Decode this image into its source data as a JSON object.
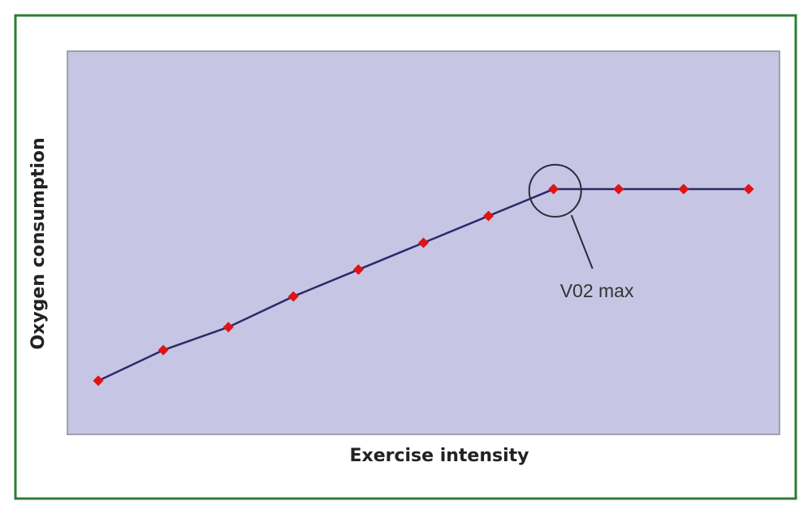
{
  "chart_data": {
    "type": "line",
    "x_label": "Exercise intensity",
    "y_label": "Oxygen consumption",
    "annotation": "V02 max",
    "categories": [
      null,
      null,
      null,
      null,
      null,
      null,
      null,
      null,
      null,
      null,
      null
    ],
    "series": [
      {
        "color": "#e01414",
        "line_color": "#2b2a6a",
        "values": [
          14,
          22,
          28,
          36,
          43,
          50,
          57,
          64,
          64,
          64,
          64
        ]
      }
    ],
    "ylim": [
      0,
      100
    ],
    "grid": false
  }
}
